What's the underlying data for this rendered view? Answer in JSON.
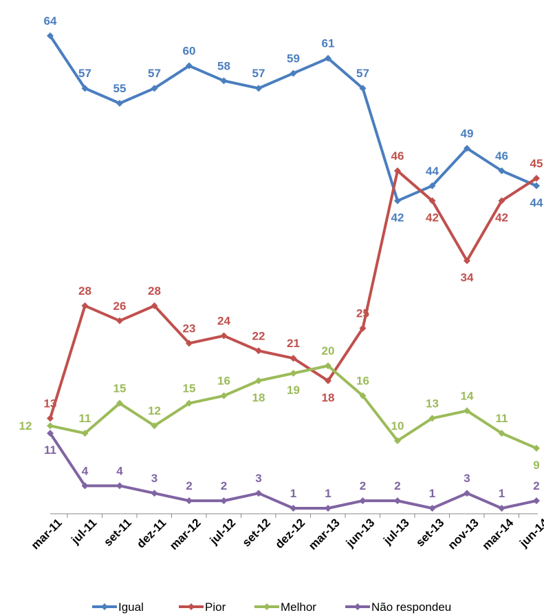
{
  "chart_data": {
    "type": "line",
    "title": "",
    "xlabel": "",
    "ylabel": "",
    "categories": [
      "mar-11",
      "jul-11",
      "set-11",
      "dez-11",
      "mar-12",
      "jul-12",
      "set-12",
      "dez-12",
      "mar-13",
      "jun-13",
      "jul-13",
      "set-13",
      "nov-13",
      "mar-14",
      "jun-14"
    ],
    "ylim": [
      0,
      65
    ],
    "grid": false,
    "legend": "bottom",
    "series": [
      {
        "name": "Igual",
        "color": "#4a7ebf",
        "values": [
          64,
          57,
          55,
          57,
          60,
          58,
          57,
          59,
          61,
          57,
          42,
          44,
          49,
          46,
          44
        ]
      },
      {
        "name": "Pior",
        "color": "#c0504d",
        "values": [
          13,
          28,
          26,
          28,
          23,
          24,
          22,
          21,
          18,
          25,
          46,
          42,
          34,
          42,
          45
        ]
      },
      {
        "name": "Melhor",
        "color": "#9bbb59",
        "values": [
          12,
          11,
          15,
          12,
          15,
          16,
          18,
          19,
          20,
          16,
          10,
          13,
          14,
          11,
          9
        ]
      },
      {
        "name": "Não respondeu",
        "color": "#8064a2",
        "values": [
          11,
          4,
          4,
          3,
          2,
          2,
          3,
          1,
          1,
          2,
          2,
          1,
          3,
          1,
          2
        ]
      }
    ]
  }
}
